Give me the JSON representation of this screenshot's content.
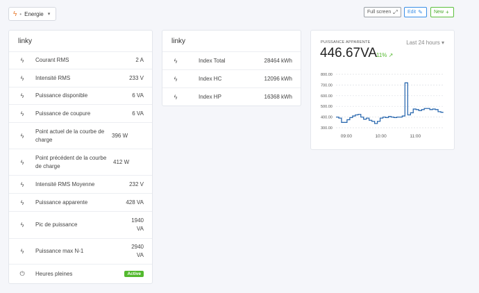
{
  "dashboard": {
    "name": "Energie"
  },
  "toolbar": {
    "fullscreen_label": "Full screen",
    "edit_label": "Edit",
    "new_label": "New"
  },
  "card1": {
    "title": "linky",
    "rows": [
      {
        "icon": "bolt-icon",
        "label": "Courant RMS",
        "value": "2 A"
      },
      {
        "icon": "bolt-icon",
        "label": "Intensité RMS",
        "value": "233 V"
      },
      {
        "icon": "bolt-icon",
        "label": "Puissance disponible",
        "value": "6 VA"
      },
      {
        "icon": "bolt-icon",
        "label": "Puissance de coupure",
        "value": "6 VA"
      },
      {
        "icon": "bolt-icon",
        "label": "Point actuel de la courbe de charge",
        "value": "396 W"
      },
      {
        "icon": "bolt-icon",
        "label": "Point précédent de la courbe de charge",
        "value": "412 W"
      },
      {
        "icon": "bolt-icon",
        "label": "Intensité RMS Moyenne",
        "value": "232 V"
      },
      {
        "icon": "bolt-icon",
        "label": "Puissance apparente",
        "value": "428 VA"
      },
      {
        "icon": "bolt-icon",
        "label": "Pic de puissance",
        "value": "1940 VA"
      },
      {
        "icon": "bolt-icon",
        "label": "Puissance max N-1",
        "value": "2940 VA"
      },
      {
        "icon": "power-icon",
        "label": "Heures pleines",
        "badge": "Active"
      }
    ]
  },
  "card2": {
    "title": "linky",
    "rows": [
      {
        "label": "Index Total",
        "value": "28464 kWh"
      },
      {
        "label": "Index HC",
        "value": "12096 kWh"
      },
      {
        "label": "Index HP",
        "value": "16368 kWh"
      }
    ]
  },
  "card3": {
    "sensor_label": "PUISSANCE APPARENTE",
    "range": "Last 24 hours",
    "value": "446.67VA",
    "trend": "11%",
    "accent": "#2e6bb0"
  },
  "chart_data": {
    "type": "line",
    "ylim": [
      300,
      800
    ],
    "yticks": [
      "800.00",
      "700.00",
      "600.00",
      "500.00",
      "400.00",
      "300.00"
    ],
    "xticks": [
      {
        "label": "09:00",
        "x": 9.0
      },
      {
        "label": "10:00",
        "x": 10.0
      },
      {
        "label": "11:00",
        "x": 11.0
      }
    ],
    "xlim": [
      8.7,
      11.8
    ],
    "x": [
      8.7,
      8.78,
      8.86,
      8.94,
      9.02,
      9.1,
      9.18,
      9.26,
      9.34,
      9.42,
      9.5,
      9.58,
      9.66,
      9.74,
      9.82,
      9.9,
      9.98,
      10.06,
      10.14,
      10.22,
      10.3,
      10.38,
      10.46,
      10.54,
      10.62,
      10.7,
      10.78,
      10.86,
      10.94,
      11.02,
      11.1,
      11.18,
      11.26,
      11.34,
      11.42,
      11.5,
      11.58,
      11.66,
      11.74,
      11.8
    ],
    "values": [
      400,
      390,
      350,
      350,
      375,
      395,
      410,
      420,
      425,
      400,
      380,
      390,
      370,
      360,
      340,
      360,
      390,
      400,
      395,
      405,
      400,
      395,
      400,
      400,
      410,
      720,
      420,
      440,
      475,
      470,
      460,
      470,
      480,
      480,
      470,
      475,
      470,
      450,
      445,
      440
    ],
    "series": [
      {
        "name": "",
        "color": "#2e6bb0"
      }
    ]
  }
}
